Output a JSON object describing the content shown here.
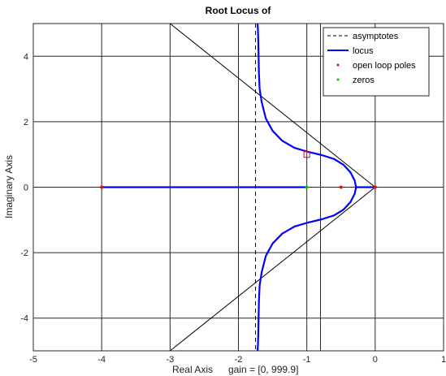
{
  "chart_data": {
    "type": "line",
    "title": "Root Locus of",
    "xlabel": "Real Axis",
    "xlabel_note": "gain = [0, 999.9]",
    "ylabel": "Imaginary Axis",
    "xlim": [
      -5,
      1
    ],
    "ylim": [
      -5,
      5
    ],
    "xticks": [
      -5,
      -4,
      -3,
      -2,
      -1,
      0,
      1
    ],
    "yticks": [
      -4,
      -2,
      0,
      2,
      4
    ],
    "grid": true,
    "legend_position": "top-right",
    "legend": [
      {
        "label": "asymptotes",
        "style": "dashed-line",
        "color": "#000000"
      },
      {
        "label": "locus",
        "style": "line",
        "color": "#0000ff"
      },
      {
        "label": "open loop poles",
        "style": "dot",
        "color": "#ff0000"
      },
      {
        "label": "zeros",
        "style": "dot",
        "color": "#00cc00"
      }
    ],
    "asymptote_centroid": -1.75,
    "open_loop_poles": [
      [
        0,
        0
      ],
      [
        -0.5,
        0
      ],
      [
        -4,
        0
      ]
    ],
    "zeros": [
      [
        -1,
        0
      ]
    ],
    "marker_point": [
      -1.0,
      1.0
    ],
    "extra_grid_lines_x": [
      -2,
      -0.8
    ],
    "cone_lines": [
      {
        "x": [
          0,
          -3.0
        ],
        "y": [
          0,
          5
        ]
      },
      {
        "x": [
          0,
          -3.0
        ],
        "y": [
          0,
          -5
        ]
      }
    ],
    "series": [
      {
        "name": "locus",
        "x": [
          -4,
          -1
        ],
        "y": [
          0,
          0
        ]
      },
      {
        "name": "locus",
        "x": [
          0,
          -0.05,
          -0.12,
          -0.2,
          -0.28
        ],
        "y": [
          0,
          0,
          0,
          0,
          0
        ]
      },
      {
        "name": "locus",
        "x": [
          -0.28,
          -0.3,
          -0.36,
          -0.46,
          -0.6,
          -0.78,
          -0.98,
          -1.18,
          -1.36,
          -1.5,
          -1.6,
          -1.66,
          -1.69,
          -1.7,
          -1.705,
          -1.71,
          -1.715,
          -1.72
        ],
        "y": [
          0,
          0.2,
          0.45,
          0.68,
          0.86,
          0.98,
          1.08,
          1.2,
          1.42,
          1.72,
          2.1,
          2.6,
          3.0,
          3.5,
          4.0,
          4.5,
          4.8,
          5.0
        ]
      },
      {
        "name": "locus",
        "x": [
          -0.28,
          -0.3,
          -0.36,
          -0.46,
          -0.6,
          -0.78,
          -0.98,
          -1.18,
          -1.36,
          -1.5,
          -1.6,
          -1.66,
          -1.69,
          -1.7,
          -1.705,
          -1.71,
          -1.715,
          -1.72
        ],
        "y": [
          0,
          -0.2,
          -0.45,
          -0.68,
          -0.86,
          -0.98,
          -1.08,
          -1.2,
          -1.42,
          -1.72,
          -2.1,
          -2.6,
          -3.0,
          -3.5,
          -4.0,
          -4.5,
          -4.8,
          -5.0
        ]
      }
    ]
  }
}
